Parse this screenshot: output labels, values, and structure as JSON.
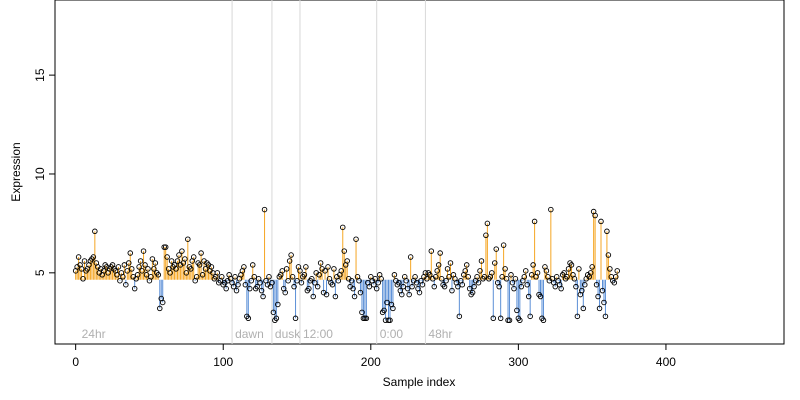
{
  "chart_data": {
    "type": "scatter",
    "title": "",
    "xlabel": "Sample index",
    "ylabel": "Expression",
    "xlim": [
      -14,
      480
    ],
    "ylim": [
      1.4,
      18.8
    ],
    "x_ticks": [
      0,
      100,
      200,
      300,
      400
    ],
    "y_ticks": [
      5,
      10,
      15
    ],
    "baseline": 4.65,
    "grid": false,
    "legend": "none",
    "colors": {
      "above_baseline": "#f5a623",
      "below_baseline": "#5b8fd6",
      "points": "#000000",
      "annotation_lines": "#d8d8d8",
      "annotation_text": "#b0b0b0"
    },
    "annotations": [
      {
        "label": "24hr",
        "x": 2
      },
      {
        "label": "dawn",
        "x": 106
      },
      {
        "label": "dusk",
        "x": 133
      },
      {
        "label": "12:00",
        "x": 152
      },
      {
        "label": "0:00",
        "x": 204
      },
      {
        "label": "48hr",
        "x": 237
      }
    ],
    "y": [
      5.1,
      5.3,
      5.8,
      5.4,
      5.2,
      4.7,
      5.6,
      5.1,
      5.2,
      5.4,
      5.6,
      5.7,
      5.8,
      7.1,
      5.5,
      5.3,
      5.0,
      5.2,
      4.9,
      5.1,
      5.4,
      5.3,
      5.0,
      5.2,
      5.3,
      5.4,
      5.2,
      5.1,
      4.9,
      5.3,
      4.6,
      5.0,
      4.8,
      5.4,
      4.4,
      5.1,
      5.5,
      6.0,
      5.2,
      4.8,
      4.2,
      4.7,
      4.9,
      5.3,
      5.6,
      5.1,
      6.1,
      5.4,
      4.9,
      5.2,
      4.6,
      4.8,
      5.7,
      5.2,
      5.5,
      5.0,
      4.9,
      3.2,
      3.7,
      3.5,
      6.3,
      6.3,
      5.8,
      5.2,
      5.0,
      5.6,
      5.3,
      5.4,
      5.2,
      5.6,
      5.9,
      5.4,
      6.1,
      5.5,
      5.7,
      5.0,
      6.7,
      5.3,
      5.2,
      5.6,
      5.8,
      4.6,
      4.8,
      5.5,
      5.4,
      6.0,
      4.9,
      5.6,
      5.2,
      5.5,
      5.4,
      5.1,
      5.3,
      5.0,
      4.7,
      4.8,
      5.0,
      4.5,
      4.6,
      4.8,
      4.4,
      4.5,
      4.2,
      4.6,
      4.9,
      4.7,
      4.5,
      4.3,
      4.8,
      4.1,
      4.4,
      4.7,
      4.9,
      5.1,
      5.3,
      4.4,
      2.8,
      2.7,
      4.2,
      4.6,
      5.4,
      4.8,
      4.2,
      4.3,
      4.7,
      4.5,
      4.1,
      3.8,
      8.2,
      4.6,
      4.4,
      4.8,
      4.3,
      4.5,
      3.0,
      2.6,
      2.7,
      3.4,
      4.8,
      4.9,
      5.1,
      4.2,
      4.0,
      5.2,
      4.6,
      5.6,
      5.9,
      4.8,
      4.3,
      2.7,
      4.6,
      5.3,
      5.1,
      4.5,
      4.8,
      4.9,
      5.3,
      4.1,
      4.2,
      4.6,
      4.7,
      3.8,
      4.5,
      5.0,
      4.3,
      4.9,
      5.5,
      5.2,
      4.0,
      5.1,
      3.9,
      5.3,
      4.7,
      4.5,
      4.4,
      5.2,
      3.8,
      4.8,
      4.6,
      4.9,
      5.1,
      7.3,
      6.1,
      5.4,
      5.6,
      4.7,
      4.3,
      4.6,
      4.2,
      3.8,
      6.7,
      4.8,
      4.6,
      4.0,
      3.0,
      2.7,
      2.7,
      2.7,
      4.5,
      4.3,
      4.8,
      4.6,
      4.4,
      4.7,
      4.2,
      4.5,
      4.9,
      4.7,
      3.0,
      3.1,
      2.6,
      3.5,
      2.6,
      2.6,
      3.4,
      3.2,
      4.9,
      4.6,
      4.4,
      4.5,
      4.1,
      3.9,
      4.3,
      4.8,
      4.6,
      4.2,
      3.9,
      5.8,
      4.3,
      4.6,
      4.8,
      4.5,
      4.2,
      4.0,
      4.6,
      4.4,
      4.8,
      5.0,
      4.7,
      5.0,
      4.9,
      6.1,
      4.7,
      4.3,
      4.8,
      5.1,
      5.4,
      6.0,
      4.7,
      4.4,
      4.3,
      4.6,
      5.2,
      4.8,
      5.5,
      4.1,
      4.9,
      4.7,
      4.5,
      4.3,
      2.8,
      4.6,
      4.4,
      4.9,
      5.1,
      5.4,
      4.8,
      4.2,
      3.9,
      4.0,
      4.3,
      4.6,
      4.8,
      4.5,
      5.1,
      5.6,
      4.7,
      4.8,
      6.9,
      7.5,
      4.7,
      4.8,
      5.0,
      2.7,
      5.5,
      6.2,
      4.5,
      4.3,
      2.7,
      4.8,
      6.4,
      5.2,
      4.7,
      2.6,
      2.6,
      4.9,
      4.5,
      4.2,
      4.7,
      3.1,
      2.7,
      2.6,
      4.3,
      4.6,
      4.8,
      5.1,
      4.4,
      3.8,
      2.8,
      4.9,
      5.4,
      7.6,
      4.8,
      5.0,
      3.9,
      3.8,
      2.7,
      2.6,
      5.3,
      5.1,
      4.8,
      4.6,
      8.2,
      4.7,
      4.5,
      4.3,
      4.8,
      4.6,
      4.4,
      4.2,
      4.9,
      5.0,
      4.7,
      4.8,
      5.2,
      5.5,
      5.4,
      4.9,
      4.7,
      4.3,
      2.8,
      5.2,
      3.9,
      4.1,
      3.2,
      4.4,
      4.7,
      4.9,
      4.8,
      5.0,
      5.3,
      8.1,
      7.9,
      4.4,
      3.8,
      3.2,
      7.6,
      4.1,
      3.5,
      2.8,
      7.1,
      5.9,
      5.2,
      4.8,
      4.6,
      4.5,
      4.8,
      5.1
    ]
  }
}
